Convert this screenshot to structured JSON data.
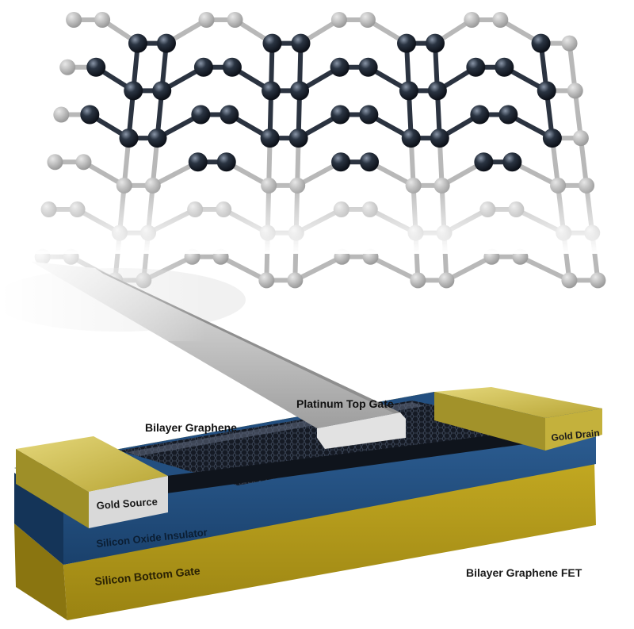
{
  "labels": {
    "bilayer_graphene": "Bilayer Graphene",
    "platinum_top_gate": "Platinum Top Gate",
    "gold_drain": "Gold Drain",
    "gold_source": "Gold Source",
    "silicon_oxide_insulator": "Silicon Oxide Insulator",
    "silicon_bottom_gate": "Silicon Bottom Gate",
    "device_caption": "Bilayer Graphene FET"
  },
  "colors": {
    "silicon": "#a8921a",
    "oxide": "#1f4a78",
    "gold": "#c9b94a",
    "graphene": "#1a1f2a",
    "platinum": "#c8c8c8",
    "atom": "#1c2430"
  }
}
